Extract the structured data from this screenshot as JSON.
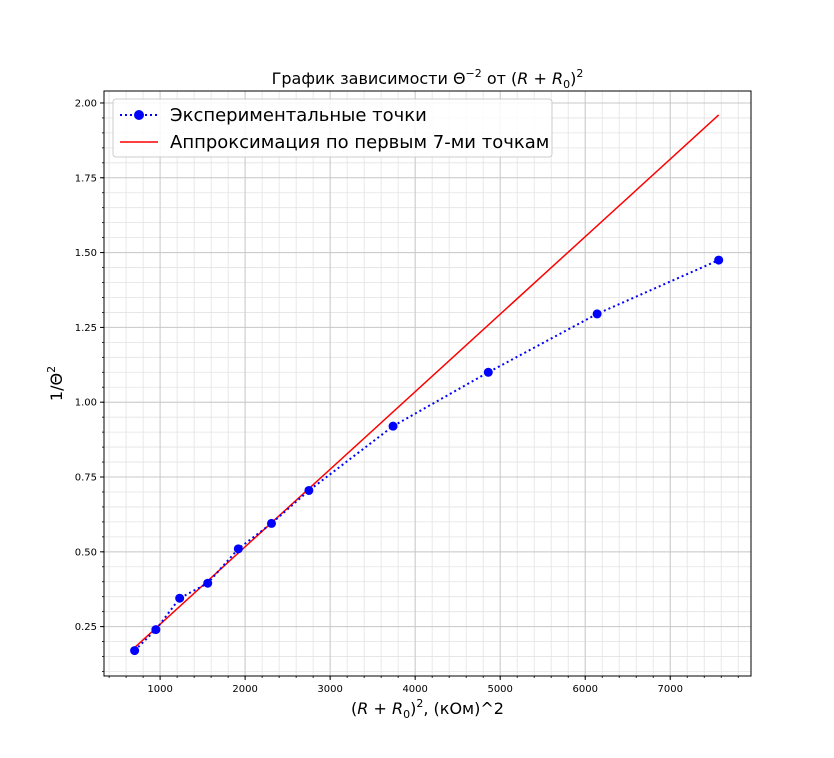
{
  "chart_data": {
    "type": "line",
    "title": "График зависимости Θ^−2 от (R+R0)^2",
    "title_parts": {
      "prefix": "График зависимости Θ",
      "exp1": "−2",
      "middle": " от (",
      "var": "R",
      "plus": " + ",
      "var0": "R",
      "sub0": "0",
      "close": ")",
      "exp2": "2"
    },
    "xlabel": "(R+R0)^2, (кОм)^2",
    "xlabel_parts": {
      "open": "(",
      "var": "R",
      "plus": " + ",
      "var0": "R",
      "sub0": "0",
      "close": ")",
      "exp": "2",
      "suffix": ", (кОм)^2"
    },
    "ylabel": "1/Θ^2",
    "ylabel_parts": {
      "base": "1/Θ",
      "exp": "2"
    },
    "xlim": [
      340,
      7950
    ],
    "ylim": [
      0.085,
      2.04
    ],
    "x_ticks": [
      1000,
      2000,
      3000,
      4000,
      5000,
      6000,
      7000
    ],
    "x_tick_labels": [
      "1000",
      "2000",
      "3000",
      "4000",
      "5000",
      "6000",
      "7000"
    ],
    "y_ticks": [
      0.25,
      0.5,
      0.75,
      1.0,
      1.25,
      1.5,
      1.75,
      2.0
    ],
    "y_tick_labels": [
      "0.25",
      "0.50",
      "0.75",
      "1.00",
      "1.25",
      "1.50",
      "1.75",
      "2.00"
    ],
    "grid": true,
    "minor_grid": true,
    "legend_position": "top-left",
    "series": [
      {
        "name": "Экспериментальные точки",
        "style": "dotted-markers",
        "color": "#0000ff",
        "x": [
          700,
          950,
          1230,
          1560,
          1920,
          2310,
          2750,
          3740,
          4860,
          6140,
          7570
        ],
        "y": [
          0.17,
          0.24,
          0.345,
          0.395,
          0.51,
          0.595,
          0.705,
          0.92,
          1.1,
          1.295,
          1.475
        ]
      },
      {
        "name": "Аппроксимация по первым 7-ми точкам",
        "style": "solid",
        "color": "#ff0000",
        "x": [
          700,
          7570
        ],
        "y": [
          0.18,
          1.96
        ]
      }
    ]
  }
}
